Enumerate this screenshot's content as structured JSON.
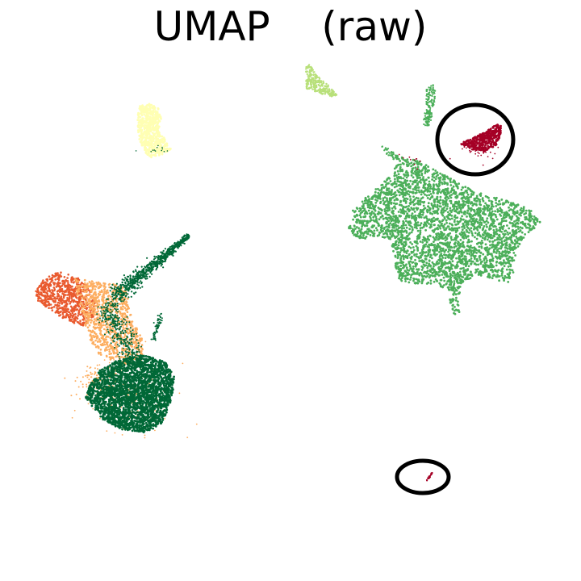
{
  "chart_data": {
    "type": "scatter",
    "title": "UMAP    (raw)",
    "xlabel": "",
    "ylabel": "",
    "axes_visible": false,
    "grid": false,
    "legend": "none",
    "colors": {
      "red_orange": "#e95a2f",
      "light_orange": "#fdae61",
      "dark_green": "#006837",
      "mid_green": "#4caf5a",
      "light_green": "#b8e07a",
      "pale_yellow": "#ffffb3",
      "crimson": "#a50026"
    },
    "annotations": [
      {
        "shape": "ellipse",
        "label": "",
        "marks": "crimson-cluster-top-right"
      },
      {
        "shape": "ellipse",
        "label": "",
        "marks": "crimson-fragment-bottom"
      }
    ]
  }
}
